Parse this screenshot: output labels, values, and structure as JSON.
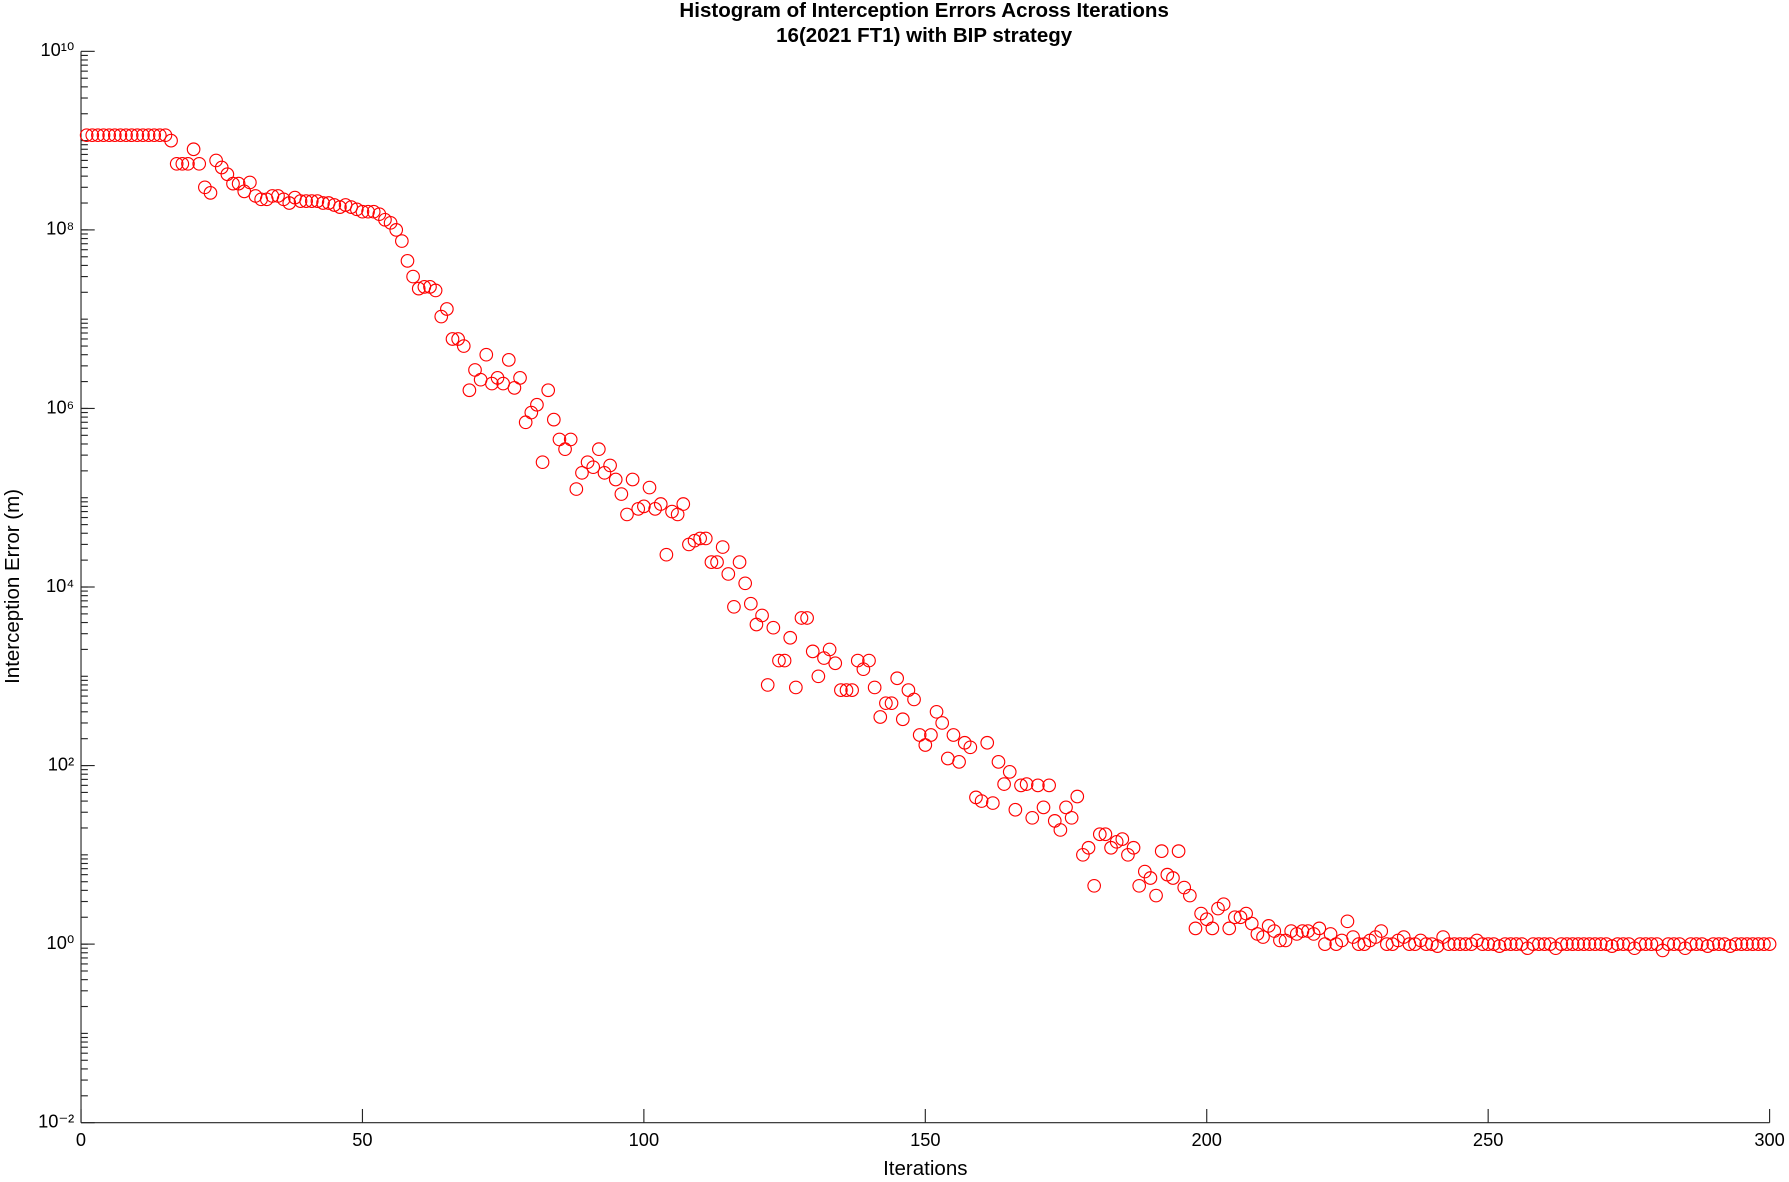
{
  "chart_data": {
    "type": "scatter",
    "title": "Histogram of Interception Errors Across Iterations",
    "subtitle": "16(2021 FT1) with BIP strategy",
    "x_label": "Iterations",
    "y_label": "Interception Error (m)",
    "color": "#ff0000",
    "marker": "open-circle",
    "yscale": "log",
    "xlim": [
      0,
      300
    ],
    "xticks": [
      0,
      50,
      100,
      150,
      200,
      250,
      300
    ],
    "ylim": [
      0.01,
      10000000000.0
    ],
    "yticks": [
      {
        "value": 0.01,
        "label": "10⁻²"
      },
      {
        "value": 1,
        "label": "10⁰"
      },
      {
        "value": 100,
        "label": "10²"
      },
      {
        "value": 10000,
        "label": "10⁴"
      },
      {
        "value": 1000000,
        "label": "10⁶"
      },
      {
        "value": 100000000,
        "label": "10⁸"
      },
      {
        "value": 10000000000,
        "label": "10¹⁰"
      }
    ],
    "x": [
      1,
      2,
      3,
      4,
      5,
      6,
      7,
      8,
      9,
      10,
      11,
      12,
      13,
      14,
      15,
      16,
      17,
      18,
      19,
      20,
      21,
      22,
      23,
      24,
      25,
      26,
      27,
      28,
      29,
      30,
      31,
      32,
      33,
      34,
      35,
      36,
      37,
      38,
      39,
      40,
      41,
      42,
      43,
      44,
      45,
      46,
      47,
      48,
      49,
      50,
      51,
      52,
      53,
      54,
      55,
      56,
      57,
      58,
      59,
      60,
      61,
      62,
      63,
      64,
      65,
      66,
      67,
      68,
      69,
      70,
      71,
      72,
      73,
      74,
      75,
      76,
      77,
      78,
      79,
      80,
      81,
      82,
      83,
      84,
      85,
      86,
      87,
      88,
      89,
      90,
      91,
      92,
      93,
      94,
      95,
      96,
      97,
      98,
      99,
      100,
      101,
      102,
      103,
      104,
      105,
      106,
      107,
      108,
      109,
      110,
      111,
      112,
      113,
      114,
      115,
      116,
      117,
      118,
      119,
      120,
      121,
      122,
      123,
      124,
      125,
      126,
      127,
      128,
      129,
      130,
      131,
      132,
      133,
      134,
      135,
      136,
      137,
      138,
      139,
      140,
      141,
      142,
      143,
      144,
      145,
      146,
      147,
      148,
      149,
      150,
      151,
      152,
      153,
      154,
      155,
      156,
      157,
      158,
      159,
      160,
      161,
      162,
      163,
      164,
      165,
      166,
      167,
      168,
      169,
      170,
      171,
      172,
      173,
      174,
      175,
      176,
      177,
      178,
      179,
      180,
      181,
      182,
      183,
      184,
      185,
      186,
      187,
      188,
      189,
      190,
      191,
      192,
      193,
      194,
      195,
      196,
      197,
      198,
      199,
      200,
      201,
      202,
      203,
      204,
      205,
      206,
      207,
      208,
      209,
      210,
      211,
      212,
      213,
      214,
      215,
      216,
      217,
      218,
      219,
      220,
      221,
      222,
      223,
      224,
      225,
      226,
      227,
      228,
      229,
      230,
      231,
      232,
      233,
      234,
      235,
      236,
      237,
      238,
      239,
      240,
      241,
      242,
      243,
      244,
      245,
      246,
      247,
      248,
      249,
      250,
      251,
      252,
      253,
      254,
      255,
      256,
      257,
      258,
      259,
      260,
      261,
      262,
      263,
      264,
      265,
      266,
      267,
      268,
      269,
      270,
      271,
      272,
      273,
      274,
      275,
      276,
      277,
      278,
      279,
      280,
      281,
      282,
      283,
      284,
      285,
      286,
      287,
      288,
      289,
      290,
      291,
      292,
      293,
      294,
      295,
      296,
      297,
      298,
      299,
      300
    ],
    "values": [
      1150000000.0,
      1150000000.0,
      1150000000.0,
      1150000000.0,
      1150000000.0,
      1150000000.0,
      1150000000.0,
      1150000000.0,
      1150000000.0,
      1150000000.0,
      1150000000.0,
      1150000000.0,
      1150000000.0,
      1150000000.0,
      1150000000.0,
      1000000000.0,
      550000000.0,
      550000000.0,
      550000000.0,
      800000000.0,
      550000000.0,
      300000000.0,
      260000000.0,
      600000000.0,
      500000000.0,
      420000000.0,
      330000000.0,
      330000000.0,
      270000000.0,
      340000000.0,
      240000000.0,
      220000000.0,
      220000000.0,
      240000000.0,
      240000000.0,
      220000000.0,
      200000000.0,
      230000000.0,
      210000000.0,
      210000000.0,
      210000000.0,
      210000000.0,
      200000000.0,
      200000000.0,
      190000000.0,
      180000000.0,
      190000000.0,
      180000000.0,
      170000000.0,
      160000000.0,
      160000000.0,
      160000000.0,
      150000000.0,
      130000000.0,
      120000000.0,
      100000000.0,
      75000000.0,
      45000000.0,
      30000000.0,
      22000000.0,
      23000000.0,
      23000000.0,
      21000000.0,
      10700000.0,
      13000000.0,
      6000000.0,
      6000000.0,
      5000000.0,
      1600000.0,
      2700000.0,
      2100000.0,
      4000000.0,
      1900000.0,
      2200000.0,
      1900000.0,
      3500000.0,
      1700000.0,
      2200000.0,
      700000.0,
      900000.0,
      1100000.0,
      250000.0,
      1600000.0,
      750000.0,
      450000.0,
      350000.0,
      450000.0,
      125000.0,
      190000.0,
      250000.0,
      220000.0,
      350000.0,
      190000.0,
      230000.0,
      160000.0,
      110000.0,
      65000.0,
      160000.0,
      75000.0,
      80000.0,
      130000.0,
      75000.0,
      85000.0,
      23000.0,
      70000.0,
      65000.0,
      85000.0,
      30000.0,
      33000.0,
      35000.0,
      35000.0,
      19000.0,
      19000.0,
      28000.0,
      14000.0,
      6000.0,
      19000.0,
      11000.0,
      6500.0,
      3800.0,
      4800.0,
      800.0,
      3500.0,
      1500.0,
      1500.0,
      2700.0,
      750.0,
      4500.0,
      4500.0,
      1900.0,
      1000.0,
      1600.0,
      2000.0,
      1400.0,
      700.0,
      700.0,
      700.0,
      1500.0,
      1200.0,
      1500.0,
      750.0,
      350.0,
      500.0,
      500.0,
      950.0,
      330.0,
      700.0,
      550.0,
      220.0,
      170.0,
      220.0,
      400.0,
      300.0,
      120.0,
      220.0,
      110.0,
      180.0,
      160.0,
      44,
      40,
      180.0,
      38,
      110.0,
      62,
      85,
      32,
      60,
      62,
      26,
      60,
      34,
      60,
      24,
      19,
      34,
      26,
      45,
      10,
      12,
      4.5,
      17,
      17,
      12,
      14,
      15,
      10,
      12,
      4.5,
      6.5,
      5.5,
      3.5,
      11,
      6,
      5.5,
      11,
      4.3,
      3.5,
      1.5,
      2.2,
      1.9,
      1.5,
      2.5,
      2.8,
      1.5,
      2,
      2,
      2.2,
      1.7,
      1.3,
      1.2,
      1.6,
      1.4,
      1.1,
      1.1,
      1.4,
      1.3,
      1.4,
      1.4,
      1.3,
      1.5,
      1.0,
      1.3,
      1.0,
      1.1,
      1.8,
      1.2,
      1.0,
      1.0,
      1.1,
      1.2,
      1.4,
      1.0,
      1.0,
      1.1,
      1.2,
      1.0,
      1.0,
      1.1,
      1.0,
      1.0,
      0.95,
      1.2,
      1.0,
      1.0,
      1.0,
      1.0,
      1.0,
      1.1,
      1.0,
      1.0,
      1.0,
      0.95,
      1.0,
      1.0,
      1.0,
      1.0,
      0.9,
      1.0,
      1.0,
      1.0,
      1.0,
      0.9,
      1.0,
      1.0,
      1.0,
      1.0,
      1.0,
      1.0,
      1.0,
      1.0,
      1.0,
      0.95,
      1.0,
      1.0,
      1.0,
      0.9,
      1.0,
      1.0,
      1.0,
      1.0,
      0.85,
      1.0,
      1.0,
      1.0,
      0.9,
      1.0,
      1.0,
      1.0,
      0.95,
      1.0,
      1.0,
      1.0,
      0.95,
      1.0,
      1.0,
      1.0,
      1.0,
      1.0,
      1.0,
      1.0
    ]
  }
}
